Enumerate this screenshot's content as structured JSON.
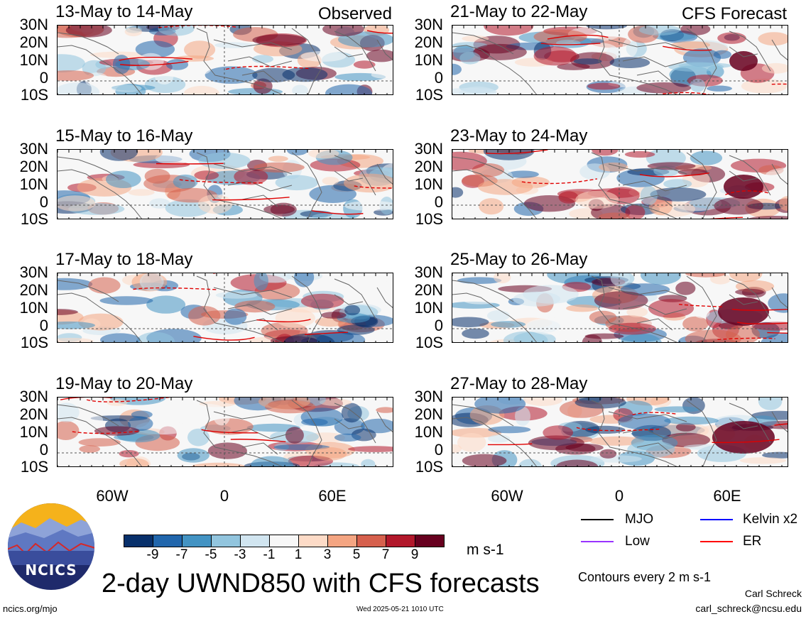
{
  "panels": [
    {
      "title": "13-May to 14-May",
      "label": "Observed"
    },
    {
      "title": "15-May to 16-May",
      "label": ""
    },
    {
      "title": "17-May to 18-May",
      "label": ""
    },
    {
      "title": "19-May to 20-May",
      "label": ""
    },
    {
      "title": "21-May to 22-May",
      "label": "CFS Forecast"
    },
    {
      "title": "23-May to 24-May",
      "label": ""
    },
    {
      "title": "25-May to 26-May",
      "label": ""
    },
    {
      "title": "27-May to 28-May",
      "label": ""
    }
  ],
  "lat_labels": [
    "30N",
    "20N",
    "10N",
    "0",
    "10S"
  ],
  "lon_labels": [
    "60W",
    "0",
    "60E"
  ],
  "colorbar": {
    "colors": [
      "#08306b",
      "#2166ac",
      "#4393c3",
      "#92c5de",
      "#d1e5f0",
      "#f7f7f7",
      "#fddbc7",
      "#f4a582",
      "#d6604d",
      "#b2182b",
      "#67001f"
    ],
    "ticks": [
      "-9",
      "-7",
      "-5",
      "-3",
      "-1",
      "1",
      "3",
      "5",
      "7",
      "9"
    ],
    "units": "m s-1"
  },
  "legend": [
    {
      "label": "MJO",
      "color": "#000000"
    },
    {
      "label": "Kelvin x2",
      "color": "#0000ff"
    },
    {
      "label": "Low",
      "color": "#9933ff"
    },
    {
      "label": "ER",
      "color": "#ff0000"
    }
  ],
  "contour_note": "Contours every 2 m s-1",
  "main_title": "2-day UWND850 with CFS forecasts",
  "logo_text": "NCICS",
  "footer": {
    "url": "ncics.org/mjo",
    "timestamp": "Wed 2025-05-21 1010 UTC",
    "author": "Carl Schreck",
    "email": "carl_schreck@ncsu.edu"
  }
}
